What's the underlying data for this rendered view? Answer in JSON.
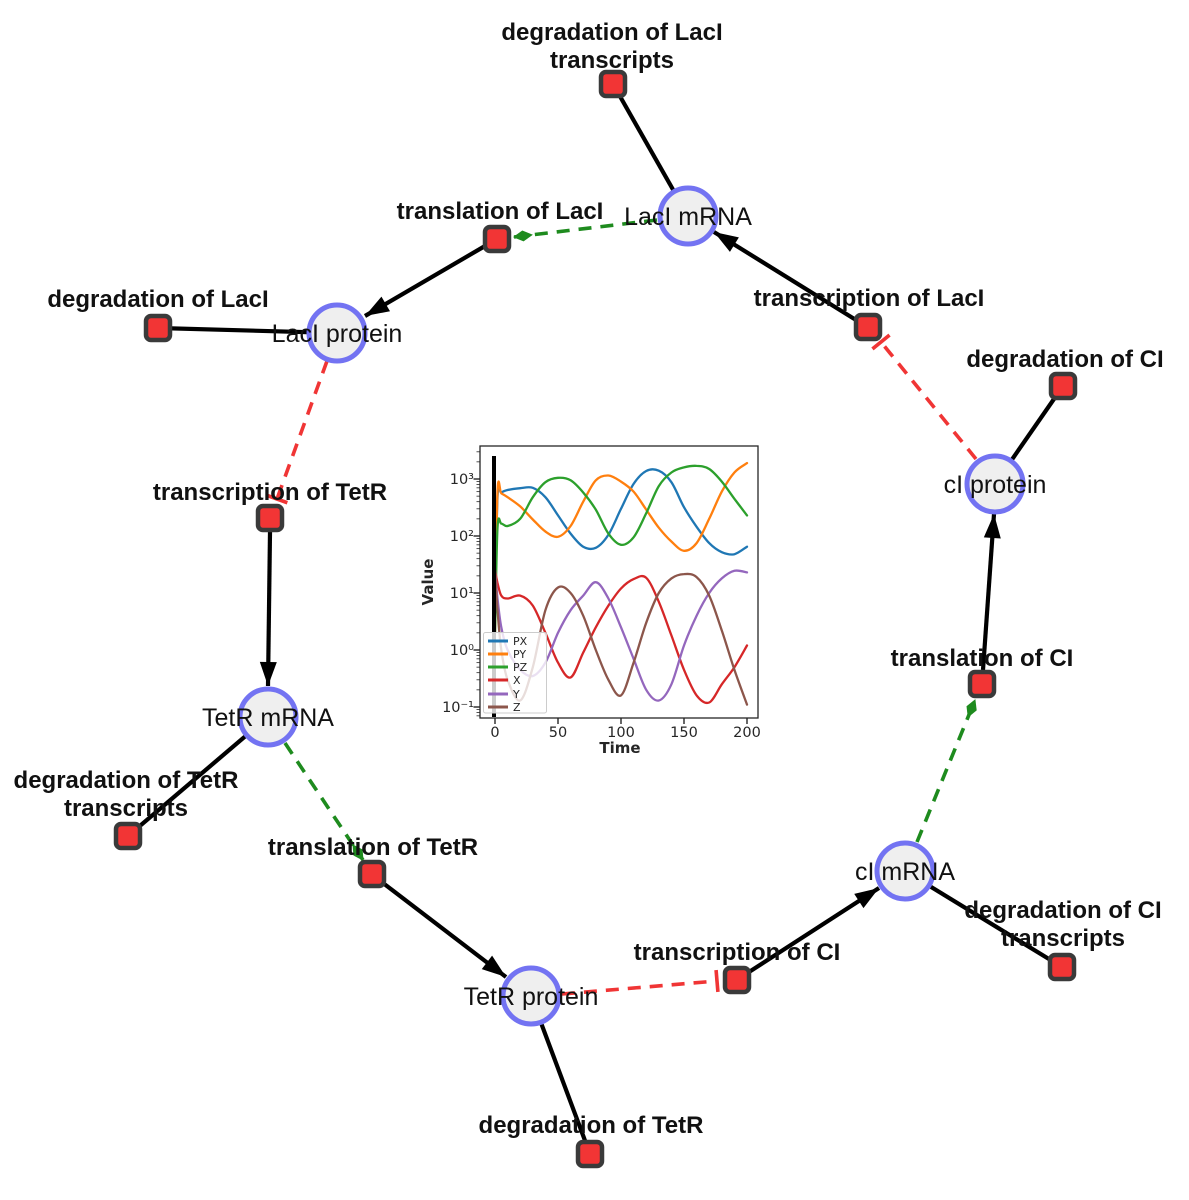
{
  "figure": {
    "background": "#ffffff"
  },
  "colors": {
    "species_fill": "#efefef",
    "species_border": "#7373f2",
    "reaction_fill": "#f23535",
    "reaction_border": "#3a3a3a",
    "edge_black": "#000000",
    "modifier_green": "#1e8b1e",
    "inhibition_red": "#f03535"
  },
  "network": {
    "species": [
      {
        "id": "laci-mrna",
        "label": "LacI mRNA"
      },
      {
        "id": "laci-protein",
        "label": "LacI protein"
      },
      {
        "id": "ci-protein",
        "label": "cI protein"
      },
      {
        "id": "tetr-mrna",
        "label": "TetR mRNA"
      },
      {
        "id": "ci-mrna",
        "label": "cI mRNA"
      },
      {
        "id": "tetr-protein",
        "label": "TetR protein"
      }
    ],
    "reactions": [
      {
        "id": "degradation-of-laci-transcripts",
        "label_lines": [
          "degradation of LacI",
          "transcripts"
        ]
      },
      {
        "id": "translation-of-laci",
        "label_lines": [
          "translation of LacI"
        ]
      },
      {
        "id": "transcription-of-laci",
        "label_lines": [
          "transcription of LacI"
        ]
      },
      {
        "id": "degradation-of-laci",
        "label_lines": [
          "degradation of LacI"
        ]
      },
      {
        "id": "degradation-of-ci",
        "label_lines": [
          "degradation of CI"
        ]
      },
      {
        "id": "transcription-of-tetr",
        "label_lines": [
          "transcription of TetR"
        ]
      },
      {
        "id": "translation-of-ci",
        "label_lines": [
          "translation of CI"
        ]
      },
      {
        "id": "degradation-of-tetr-transcripts",
        "label_lines": [
          "degradation of TetR",
          "transcripts"
        ]
      },
      {
        "id": "translation-of-tetr",
        "label_lines": [
          "translation of TetR"
        ]
      },
      {
        "id": "degradation-of-ci-transcripts",
        "label_lines": [
          "degradation of CI",
          "transcripts"
        ]
      },
      {
        "id": "transcription-of-ci",
        "label_lines": [
          "transcription of CI"
        ]
      },
      {
        "id": "degradation-of-tetr",
        "label_lines": [
          "degradation of TetR"
        ]
      }
    ],
    "edges": [
      {
        "source": "LacI mRNA",
        "target": "degradation of LacI transcripts",
        "type": "consumption"
      },
      {
        "source": "LacI mRNA",
        "target": "translation of LacI",
        "type": "modifier"
      },
      {
        "source": "transcription of LacI",
        "target": "LacI mRNA",
        "type": "production"
      },
      {
        "source": "translation of LacI",
        "target": "LacI protein",
        "type": "production"
      },
      {
        "source": "LacI protein",
        "target": "degradation of LacI",
        "type": "consumption"
      },
      {
        "source": "LacI protein",
        "target": "transcription of TetR",
        "type": "inhibition"
      },
      {
        "source": "transcription of TetR",
        "target": "TetR mRNA",
        "type": "production"
      },
      {
        "source": "TetR mRNA",
        "target": "degradation of TetR transcripts",
        "type": "consumption"
      },
      {
        "source": "TetR mRNA",
        "target": "translation of TetR",
        "type": "modifier"
      },
      {
        "source": "translation of TetR",
        "target": "TetR protein",
        "type": "production"
      },
      {
        "source": "TetR protein",
        "target": "degradation of TetR",
        "type": "consumption"
      },
      {
        "source": "TetR protein",
        "target": "transcription of CI",
        "type": "inhibition"
      },
      {
        "source": "transcription of CI",
        "target": "cI mRNA",
        "type": "production"
      },
      {
        "source": "cI mRNA",
        "target": "degradation of CI transcripts",
        "type": "consumption"
      },
      {
        "source": "cI mRNA",
        "target": "translation of CI",
        "type": "modifier"
      },
      {
        "source": "translation of CI",
        "target": "cI protein",
        "type": "production"
      },
      {
        "source": "cI protein",
        "target": "degradation of CI",
        "type": "consumption"
      },
      {
        "source": "cI protein",
        "target": "transcription of LacI",
        "type": "inhibition"
      }
    ]
  },
  "chart_data": {
    "type": "line",
    "title": "",
    "xlabel": "Time",
    "ylabel": "Value",
    "y_scale": "log",
    "grid": false,
    "legend_position": "lower left",
    "xlim": [
      -12,
      209
    ],
    "ylim": [
      0.065,
      3800
    ],
    "vline_x": 0,
    "x_ticks": [
      0,
      50,
      100,
      150,
      200
    ],
    "x_tick_labels": [
      "0",
      "50",
      "100",
      "150",
      "200"
    ],
    "y_tick_values": [
      0.1,
      1,
      10,
      100,
      1000
    ],
    "y_tick_labels": [
      "10⁻¹",
      "10⁰",
      "10¹",
      "10²",
      "10³"
    ],
    "x": [
      0,
      2,
      5,
      10,
      20,
      30,
      40,
      50,
      60,
      70,
      80,
      90,
      100,
      110,
      120,
      130,
      140,
      150,
      160,
      170,
      180,
      190,
      200
    ],
    "series": [
      {
        "name": "PX",
        "color": "#1f77b4",
        "values": [
          4,
          480,
          580,
          640,
          690,
          700,
          480,
          230,
          110,
          65,
          62,
          105,
          300,
          820,
          1380,
          1400,
          880,
          320,
          145,
          75,
          52,
          48,
          65
        ]
      },
      {
        "name": "PY",
        "color": "#ff7f0e",
        "values": [
          2,
          600,
          560,
          480,
          330,
          195,
          120,
          97,
          150,
          400,
          950,
          1150,
          900,
          600,
          290,
          140,
          80,
          55,
          75,
          200,
          600,
          1300,
          1900
        ]
      },
      {
        "name": "PZ",
        "color": "#2ca02c",
        "values": [
          2,
          140,
          165,
          150,
          200,
          480,
          880,
          1050,
          950,
          580,
          290,
          110,
          70,
          95,
          250,
          750,
          1300,
          1600,
          1700,
          1500,
          900,
          450,
          230
        ]
      },
      {
        "name": "X",
        "color": "#d62728",
        "values": [
          25,
          15,
          9,
          8,
          9,
          6,
          2,
          0.6,
          0.33,
          0.9,
          2.5,
          6,
          12,
          17.5,
          18.5,
          7,
          1.8,
          0.45,
          0.16,
          0.12,
          0.25,
          0.5,
          1.2
        ]
      },
      {
        "name": "Y",
        "color": "#9467bd",
        "values": [
          25,
          8,
          2.5,
          1.0,
          0.45,
          0.35,
          0.6,
          2,
          5,
          9,
          15.5,
          8,
          2.5,
          0.7,
          0.2,
          0.13,
          0.25,
          1.2,
          4,
          10,
          18,
          24.5,
          23
        ]
      },
      {
        "name": "Z",
        "color": "#8c564b",
        "values": [
          25,
          5,
          1,
          0.3,
          0.13,
          0.5,
          5,
          12.5,
          10,
          4,
          1,
          0.3,
          0.16,
          0.6,
          3,
          10,
          18,
          21.5,
          19,
          9,
          2.2,
          0.45,
          0.11
        ]
      }
    ]
  }
}
